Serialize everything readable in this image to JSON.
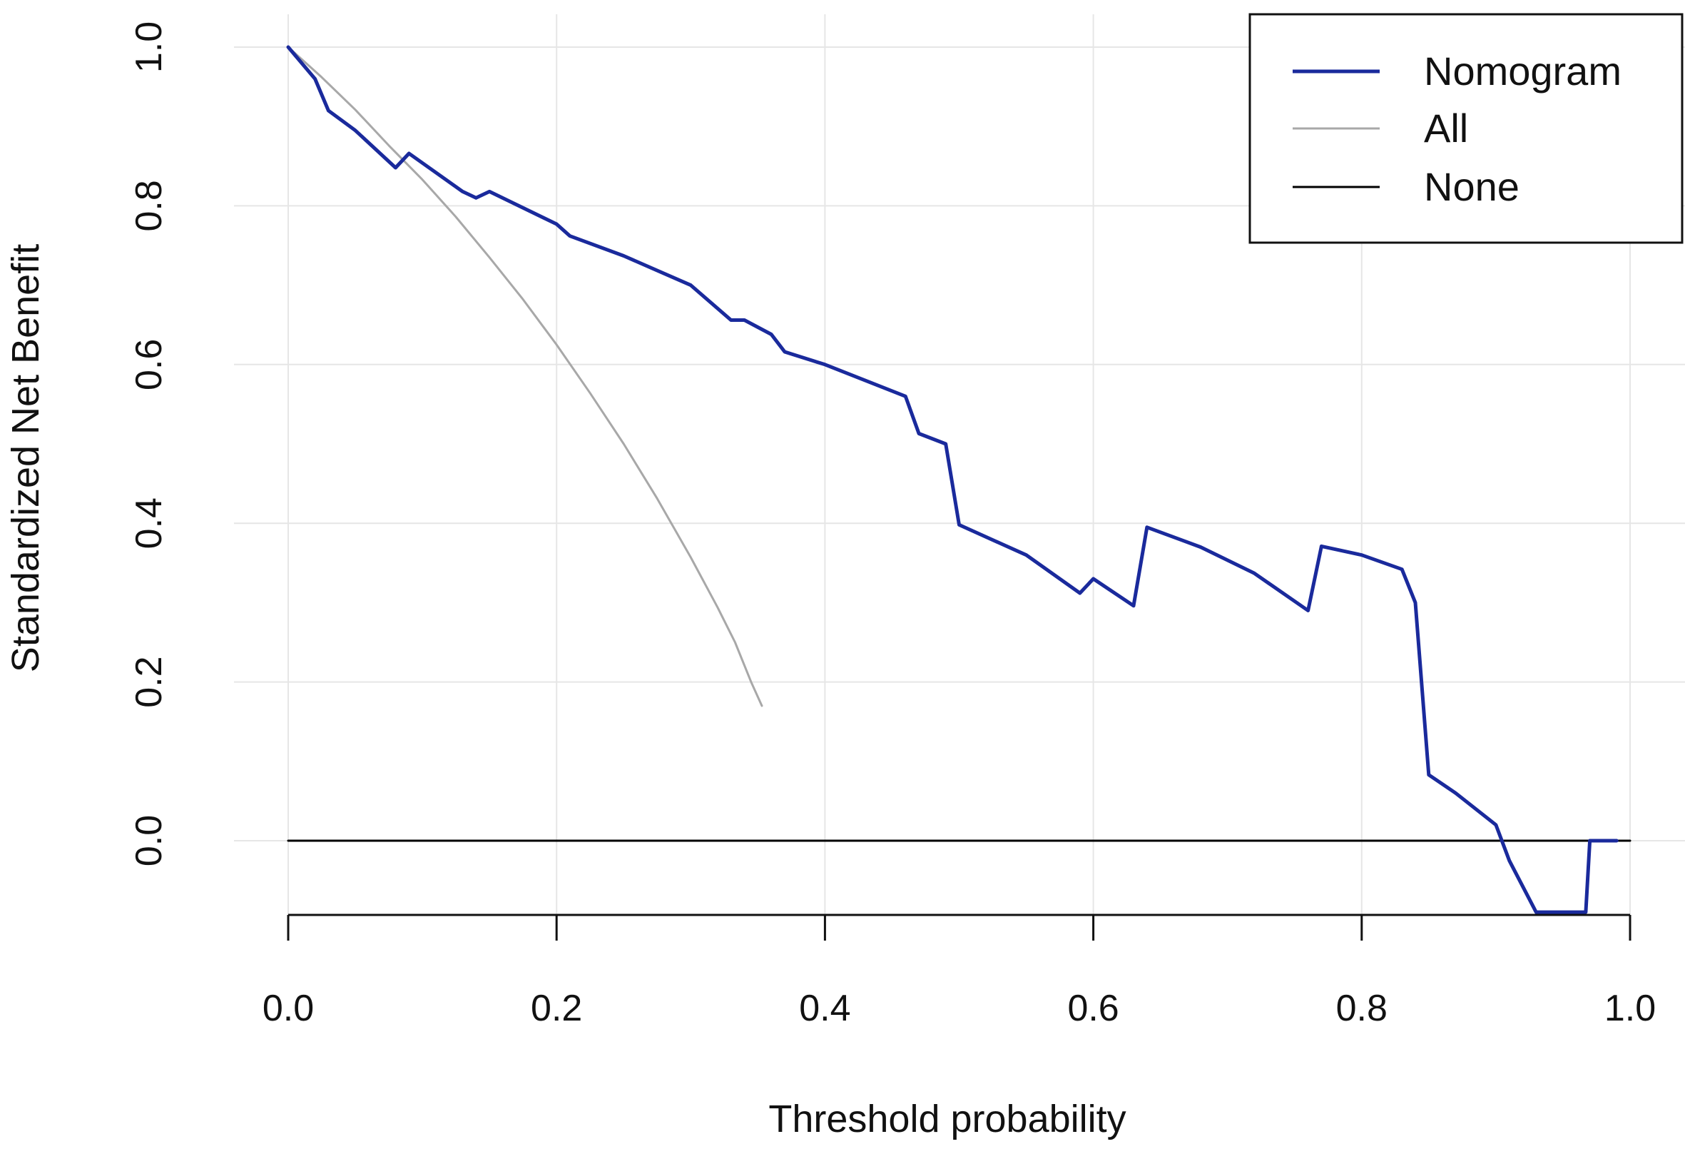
{
  "chart_data": {
    "type": "line",
    "title": "",
    "xlabel": "Threshold probability",
    "ylabel": "Standardized Net Benefit",
    "xlim": [
      0.0,
      1.0
    ],
    "ylim": [
      -0.09,
      1.0
    ],
    "x_ticks": [
      "0.0",
      "0.2",
      "0.4",
      "0.6",
      "0.8",
      "1.0"
    ],
    "y_ticks": [
      "0.0",
      "0.2",
      "0.4",
      "0.6",
      "0.8",
      "1.0"
    ],
    "grid": true,
    "legend_position": "top-right",
    "series": [
      {
        "name": "Nomogram",
        "color": "#1a2a9c",
        "x": [
          0.0,
          0.02,
          0.03,
          0.05,
          0.08,
          0.09,
          0.13,
          0.14,
          0.15,
          0.2,
          0.21,
          0.25,
          0.3,
          0.33,
          0.34,
          0.36,
          0.37,
          0.4,
          0.46,
          0.47,
          0.49,
          0.5,
          0.55,
          0.59,
          0.6,
          0.63,
          0.64,
          0.68,
          0.72,
          0.76,
          0.77,
          0.8,
          0.83,
          0.84,
          0.85,
          0.87,
          0.9,
          0.91,
          0.93,
          0.967,
          0.97,
          0.99
        ],
        "y": [
          1.0,
          0.96,
          0.92,
          0.895,
          0.848,
          0.866,
          0.818,
          0.81,
          0.818,
          0.777,
          0.762,
          0.737,
          0.7,
          0.656,
          0.656,
          0.638,
          0.616,
          0.6,
          0.56,
          0.513,
          0.5,
          0.398,
          0.36,
          0.312,
          0.33,
          0.296,
          0.395,
          0.37,
          0.337,
          0.29,
          0.371,
          0.36,
          0.342,
          0.3,
          0.083,
          0.06,
          0.02,
          -0.025,
          -0.09,
          -0.09,
          0.0,
          0.0
        ]
      },
      {
        "name": "All",
        "color": "#a8a8a8",
        "x": [
          0.0,
          0.025,
          0.05,
          0.075,
          0.1,
          0.125,
          0.15,
          0.175,
          0.2,
          0.225,
          0.25,
          0.275,
          0.3,
          0.32,
          0.333,
          0.345,
          0.353
        ],
        "y": [
          1.0,
          0.962,
          0.921,
          0.876,
          0.833,
          0.786,
          0.735,
          0.682,
          0.625,
          0.564,
          0.5,
          0.431,
          0.357,
          0.294,
          0.25,
          0.2,
          0.17
        ]
      },
      {
        "name": "None",
        "color": "#000000",
        "x": [
          0.0,
          1.0
        ],
        "y": [
          0.0,
          0.0
        ]
      }
    ]
  }
}
